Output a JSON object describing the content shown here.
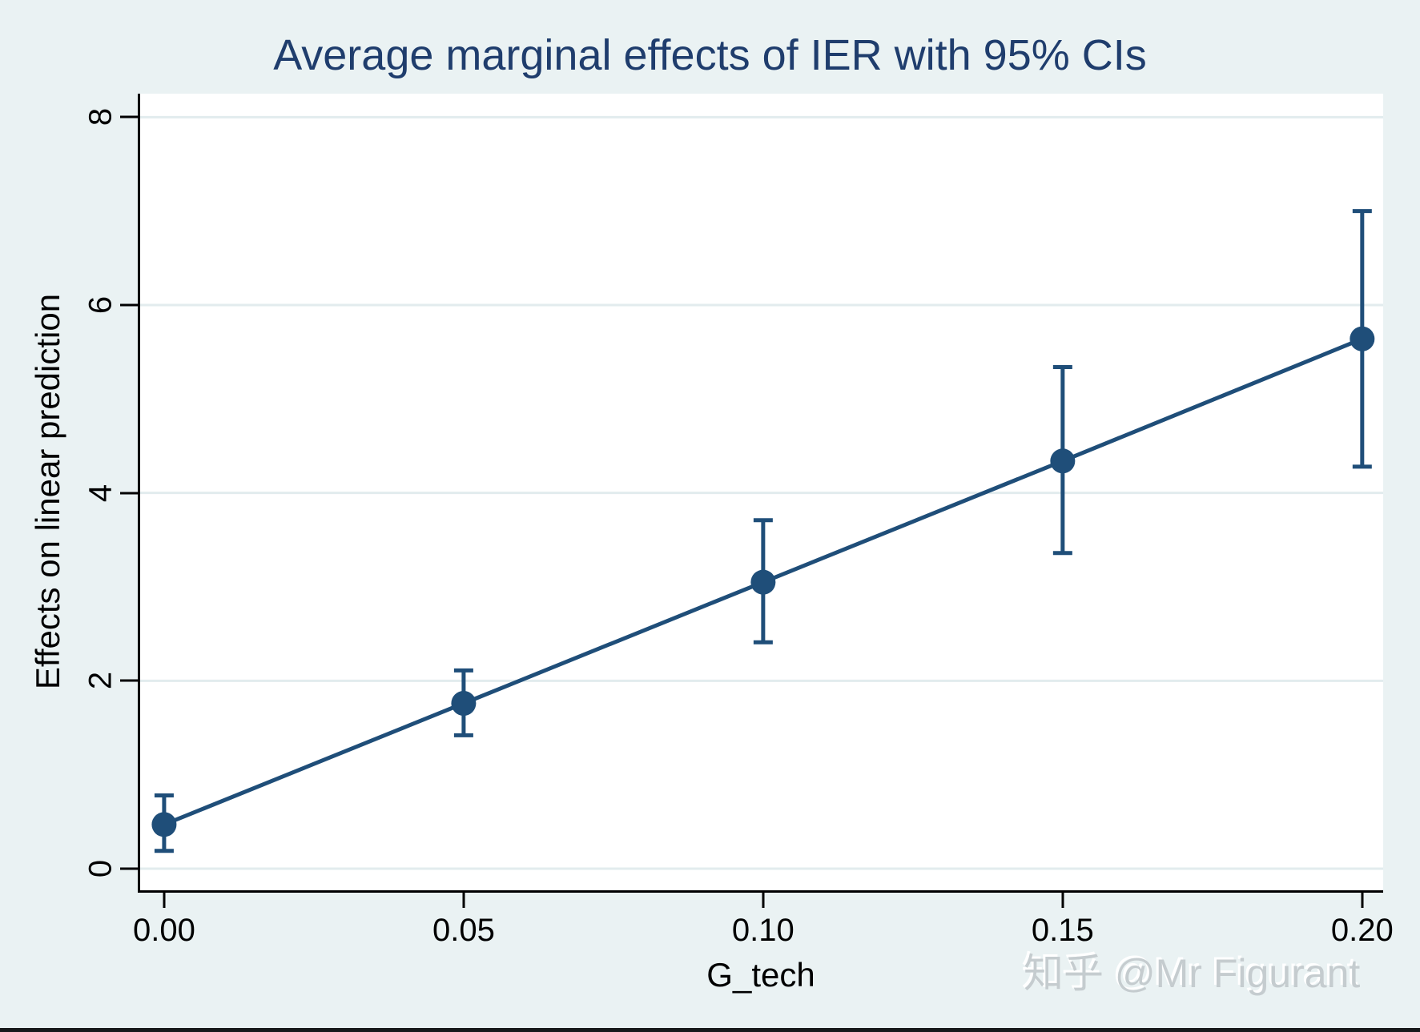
{
  "title": "Average marginal effects of IER with 95% CIs",
  "watermark": "知乎 @Mr Figurant",
  "colors": {
    "background": "#eaf2f3",
    "plot_background": "#ffffff",
    "gridline": "#e2ecee",
    "axis": "#000000",
    "title_text": "#1f3d6d",
    "series": "#1f4e79",
    "watermark_text": "#c5cccf",
    "bottom_bar": "#17191a"
  },
  "chart_data": {
    "type": "line",
    "title": "Average marginal effects of IER with 95% CIs",
    "xlabel": "G_tech",
    "ylabel": "Effects on linear prediction",
    "ci_level": "95%",
    "x": [
      0.0,
      0.05,
      0.1,
      0.15,
      0.2
    ],
    "series": [
      {
        "name": "Average marginal effect of IER",
        "values": [
          0.47,
          1.76,
          3.05,
          4.34,
          5.64
        ],
        "ci_low": [
          0.19,
          1.42,
          2.41,
          3.36,
          4.28
        ],
        "ci_high": [
          0.78,
          2.11,
          3.71,
          5.34,
          7.0
        ]
      }
    ],
    "x_tick_labels": [
      "0.00",
      "0.05",
      "0.10",
      "0.15",
      "0.20"
    ],
    "x_tick_values": [
      0.0,
      0.05,
      0.1,
      0.15,
      0.2
    ],
    "y_tick_labels": [
      "0",
      "2",
      "4",
      "6",
      "8"
    ],
    "y_tick_values": [
      0,
      2,
      4,
      6,
      8
    ],
    "xlim": [
      -0.004,
      0.2035
    ],
    "ylim": [
      -0.23,
      8.25
    ],
    "grid": "horizontal-only",
    "legend": "none",
    "marker": "filled-circle",
    "error_bars": "capped"
  }
}
